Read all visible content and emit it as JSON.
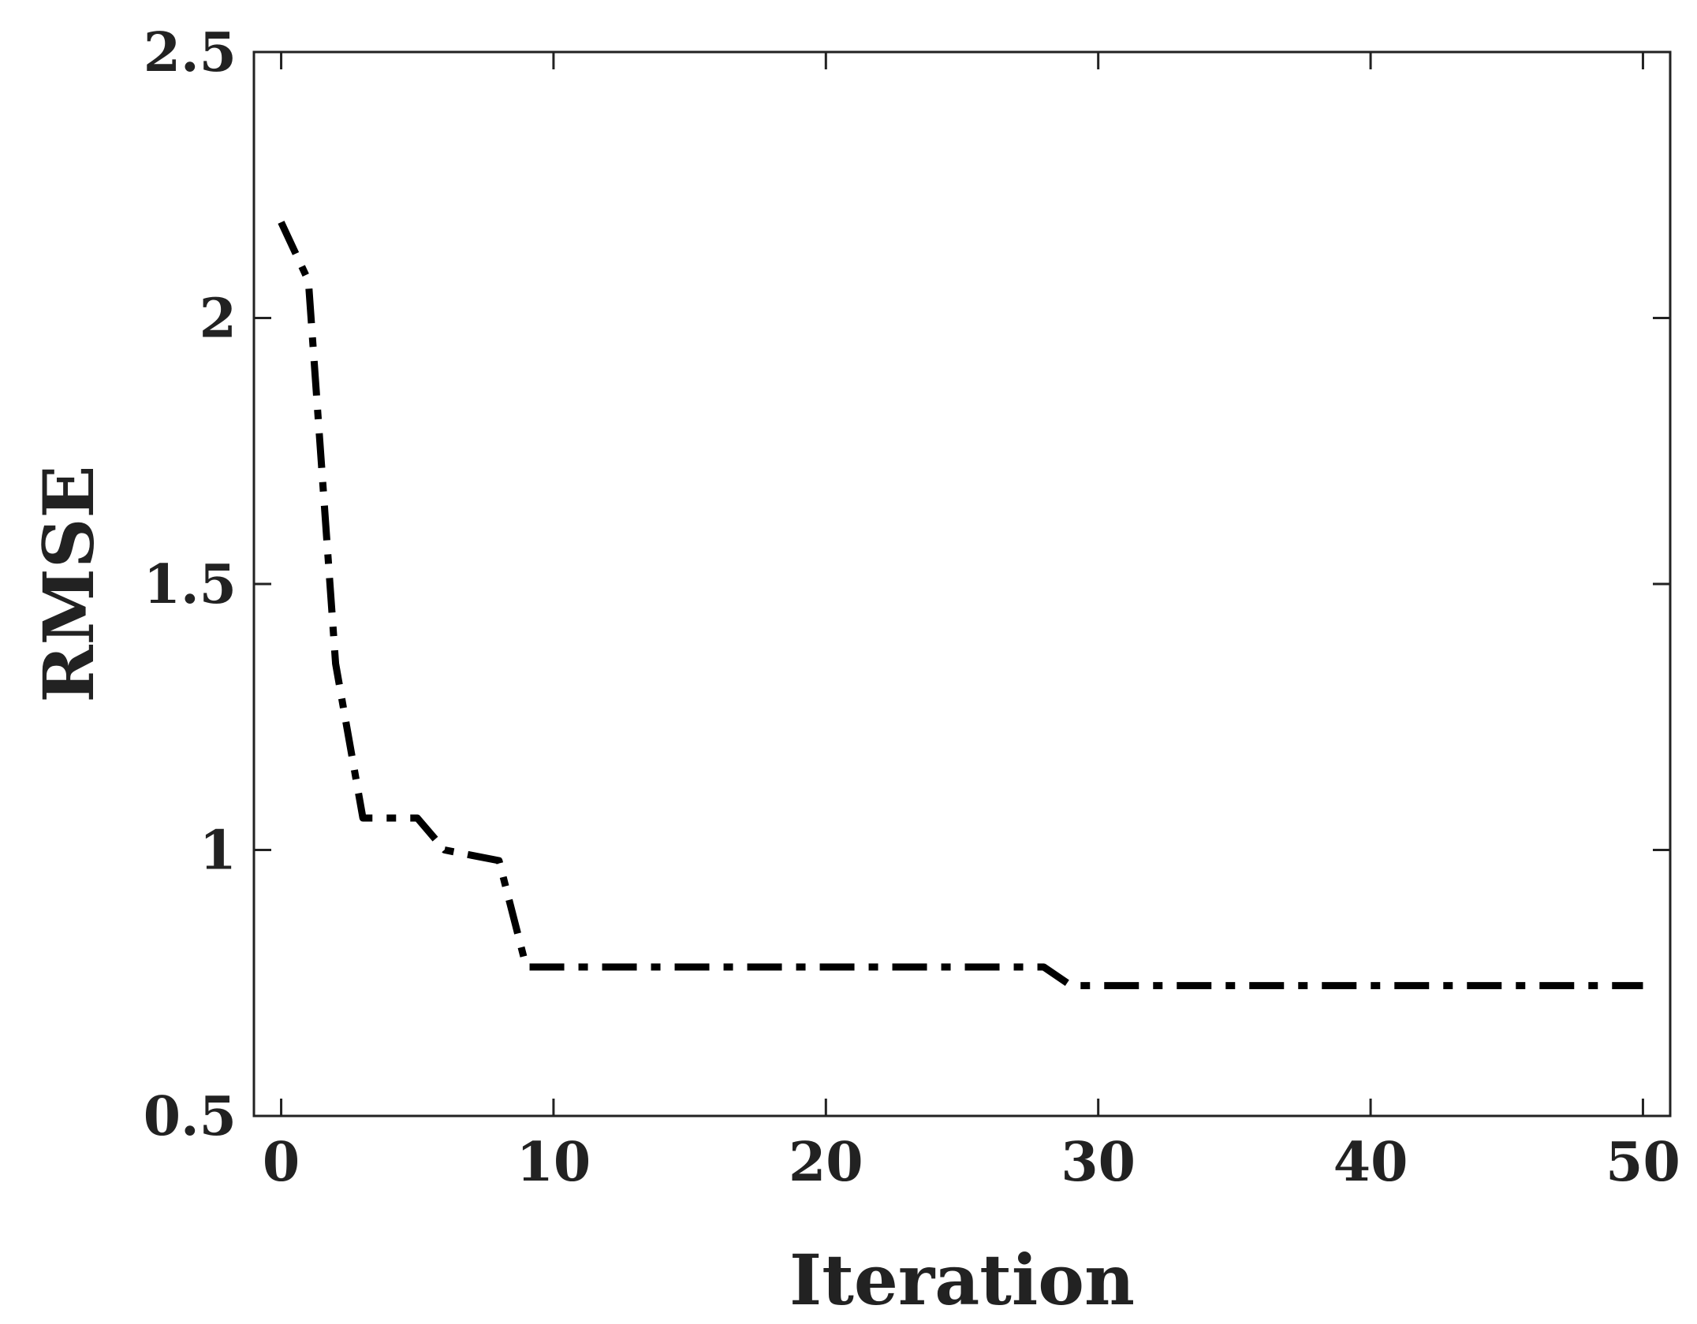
{
  "chart_data": {
    "type": "line",
    "title": "",
    "xlabel": "Iteration",
    "ylabel": "RMSE",
    "xlim": [
      -1,
      51
    ],
    "ylim": [
      0.5,
      2.5
    ],
    "xticks": [
      0,
      10,
      20,
      30,
      40,
      50
    ],
    "yticks": [
      0.5,
      1,
      1.5,
      2,
      2.5
    ],
    "xtick_labels": [
      "0",
      "10",
      "20",
      "30",
      "40",
      "50"
    ],
    "ytick_labels": [
      "0.5",
      "1",
      "1.5",
      "2",
      "2.5"
    ],
    "grid": false,
    "legend": "none",
    "line_style": "dash-dot",
    "line_color": "#000000",
    "series": [
      {
        "x": [
          0,
          1,
          2,
          3,
          4,
          5,
          6,
          7,
          8,
          9,
          10,
          11,
          12,
          13,
          14,
          15,
          16,
          17,
          18,
          19,
          20,
          21,
          22,
          23,
          24,
          25,
          26,
          27,
          28,
          29,
          30,
          31,
          32,
          33,
          34,
          35,
          36,
          37,
          38,
          39,
          40,
          41,
          42,
          43,
          44,
          45,
          46,
          47,
          48,
          49,
          50
        ],
        "values": [
          2.18,
          2.07,
          1.35,
          1.06,
          1.06,
          1.06,
          1.0,
          0.99,
          0.98,
          0.78,
          0.78,
          0.78,
          0.78,
          0.78,
          0.78,
          0.78,
          0.78,
          0.78,
          0.78,
          0.78,
          0.78,
          0.78,
          0.78,
          0.78,
          0.78,
          0.78,
          0.78,
          0.78,
          0.78,
          0.745,
          0.745,
          0.745,
          0.745,
          0.745,
          0.745,
          0.745,
          0.745,
          0.745,
          0.745,
          0.745,
          0.745,
          0.745,
          0.745,
          0.745,
          0.745,
          0.745,
          0.745,
          0.745,
          0.745,
          0.745,
          0.745
        ]
      }
    ]
  }
}
